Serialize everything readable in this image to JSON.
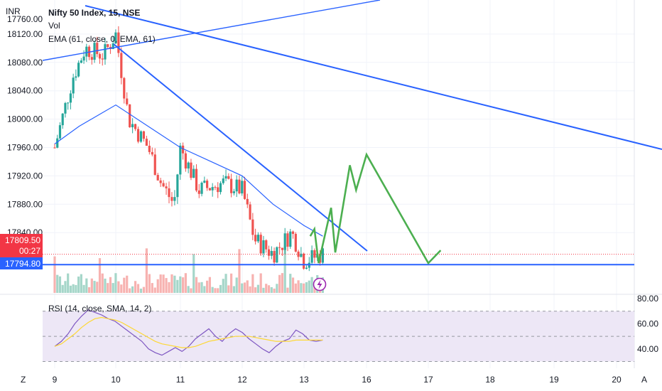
{
  "colors": {
    "up": "#26a69a",
    "down": "#ef5350",
    "ema": "#2962ff",
    "trendline": "#2962ff",
    "projection": "#4caf50",
    "rsi": "#7e57c2",
    "rsi_ma": "#fdd835",
    "rsi_band": "#ede7f6",
    "price_tag": "#f23645",
    "level_tag": "#2962ff",
    "grid": "#f0f3fa",
    "text": "#131722"
  },
  "header": {
    "currency": "INR",
    "symbol_line": "Nifty 50 Index, 15, NSE",
    "vol_label": "Vol",
    "ema_label": "EMA (61, close, 0, EMA, 61)"
  },
  "price_tags": {
    "last_price": "17809.50",
    "countdown": "00:27",
    "level": "17794.80",
    "partial_label": "17760.00"
  },
  "footer": {
    "timezone_button": "Z",
    "auto_button": "A"
  },
  "event_icon": "lightning-bolt-icon",
  "chart_data": [
    {
      "type": "candlestick",
      "title": "Nifty 50 Index, 15, NSE",
      "currency": "INR",
      "y_axis_ticks": [
        18120,
        18080,
        18040,
        18000,
        17960,
        17920,
        17880,
        17840
      ],
      "y_axis_tick_labels": [
        "18120.00",
        "18080.00",
        "18040.00",
        "18000.00",
        "17960.00",
        "17920.00",
        "17880.00",
        "17840.00"
      ],
      "x_axis_ticks": [
        "9",
        "10",
        "11",
        "12",
        "13",
        "16",
        "17",
        "18",
        "19",
        "20"
      ],
      "ylim": [
        17755,
        18160
      ],
      "last_price": 17809.5,
      "horizontal_level": 17794.8,
      "ema_period": 61,
      "volume_pane": true,
      "price_path": [
        {
          "day": "9",
          "close": 17960
        },
        {
          "day": "9.3",
          "close": 18060
        },
        {
          "day": "9.5",
          "close": 18100
        },
        {
          "day": "9.8",
          "close": 18090
        },
        {
          "day": "10",
          "close": 18120
        },
        {
          "day": "10.2",
          "close": 18000
        },
        {
          "day": "10.5",
          "close": 17960
        },
        {
          "day": "10.7",
          "close": 17910
        },
        {
          "day": "10.9",
          "close": 17880
        },
        {
          "day": "11",
          "close": 17960
        },
        {
          "day": "11.3",
          "close": 17900
        },
        {
          "day": "11.7",
          "close": 17910
        },
        {
          "day": "12",
          "close": 17900
        },
        {
          "day": "12.2",
          "close": 17830
        },
        {
          "day": "12.5",
          "close": 17810
        },
        {
          "day": "12.8",
          "close": 17840
        },
        {
          "day": "13",
          "close": 17800
        },
        {
          "day": "13.3",
          "close": 17810
        }
      ],
      "ema_path": [
        {
          "day": "9",
          "value": 17965
        },
        {
          "day": "9.4",
          "value": 17990
        },
        {
          "day": "9.8",
          "value": 18010
        },
        {
          "day": "10",
          "value": 18020
        },
        {
          "day": "10.5",
          "value": 17990
        },
        {
          "day": "11",
          "value": 17960
        },
        {
          "day": "11.5",
          "value": 17940
        },
        {
          "day": "12",
          "value": 17920
        },
        {
          "day": "12.5",
          "value": 17880
        },
        {
          "day": "13",
          "value": 17850
        },
        {
          "day": "13.3",
          "value": 17835
        }
      ],
      "projection_path": [
        {
          "day": "13.3",
          "price": 17835
        },
        {
          "day": "13.5",
          "price": 17845
        },
        {
          "day": "13.7",
          "price": 17797
        },
        {
          "day": "14.3",
          "price": 17875
        },
        {
          "day": "14.5",
          "price": 17812
        },
        {
          "day": "15.2",
          "price": 17935
        },
        {
          "day": "15.5",
          "price": 17900
        },
        {
          "day": "16",
          "price": 17950
        },
        {
          "day": "17",
          "price": 17797
        },
        {
          "day": "17.2",
          "price": 17815
        }
      ]
    },
    {
      "type": "line",
      "title": "RSI (14, close, SMA, 14, 2)",
      "y_axis_ticks": [
        80,
        60,
        40
      ],
      "y_axis_tick_labels": [
        "80.00",
        "60.00",
        "40.00"
      ],
      "band": [
        30,
        70
      ],
      "midline": 50,
      "ylim": [
        28,
        80
      ],
      "series": [
        {
          "values": [
            42,
            46,
            52,
            60,
            66,
            71,
            69,
            67,
            64,
            62,
            58,
            54,
            50,
            46,
            40,
            37,
            35,
            38,
            41,
            38,
            42,
            48,
            52,
            56,
            50,
            46,
            52,
            56,
            53,
            48,
            44,
            40,
            37,
            42,
            46,
            48,
            55,
            52,
            47,
            46,
            47
          ]
        },
        {
          "values": [
            42,
            44,
            48,
            52,
            57,
            61,
            64,
            65,
            64,
            63,
            61,
            58,
            55,
            52,
            49,
            46,
            44,
            43,
            42,
            41,
            41,
            42,
            44,
            46,
            47,
            48,
            49,
            50,
            50,
            50,
            49,
            48,
            47,
            46,
            46,
            46,
            47,
            47,
            47,
            47,
            47
          ]
        }
      ]
    }
  ]
}
